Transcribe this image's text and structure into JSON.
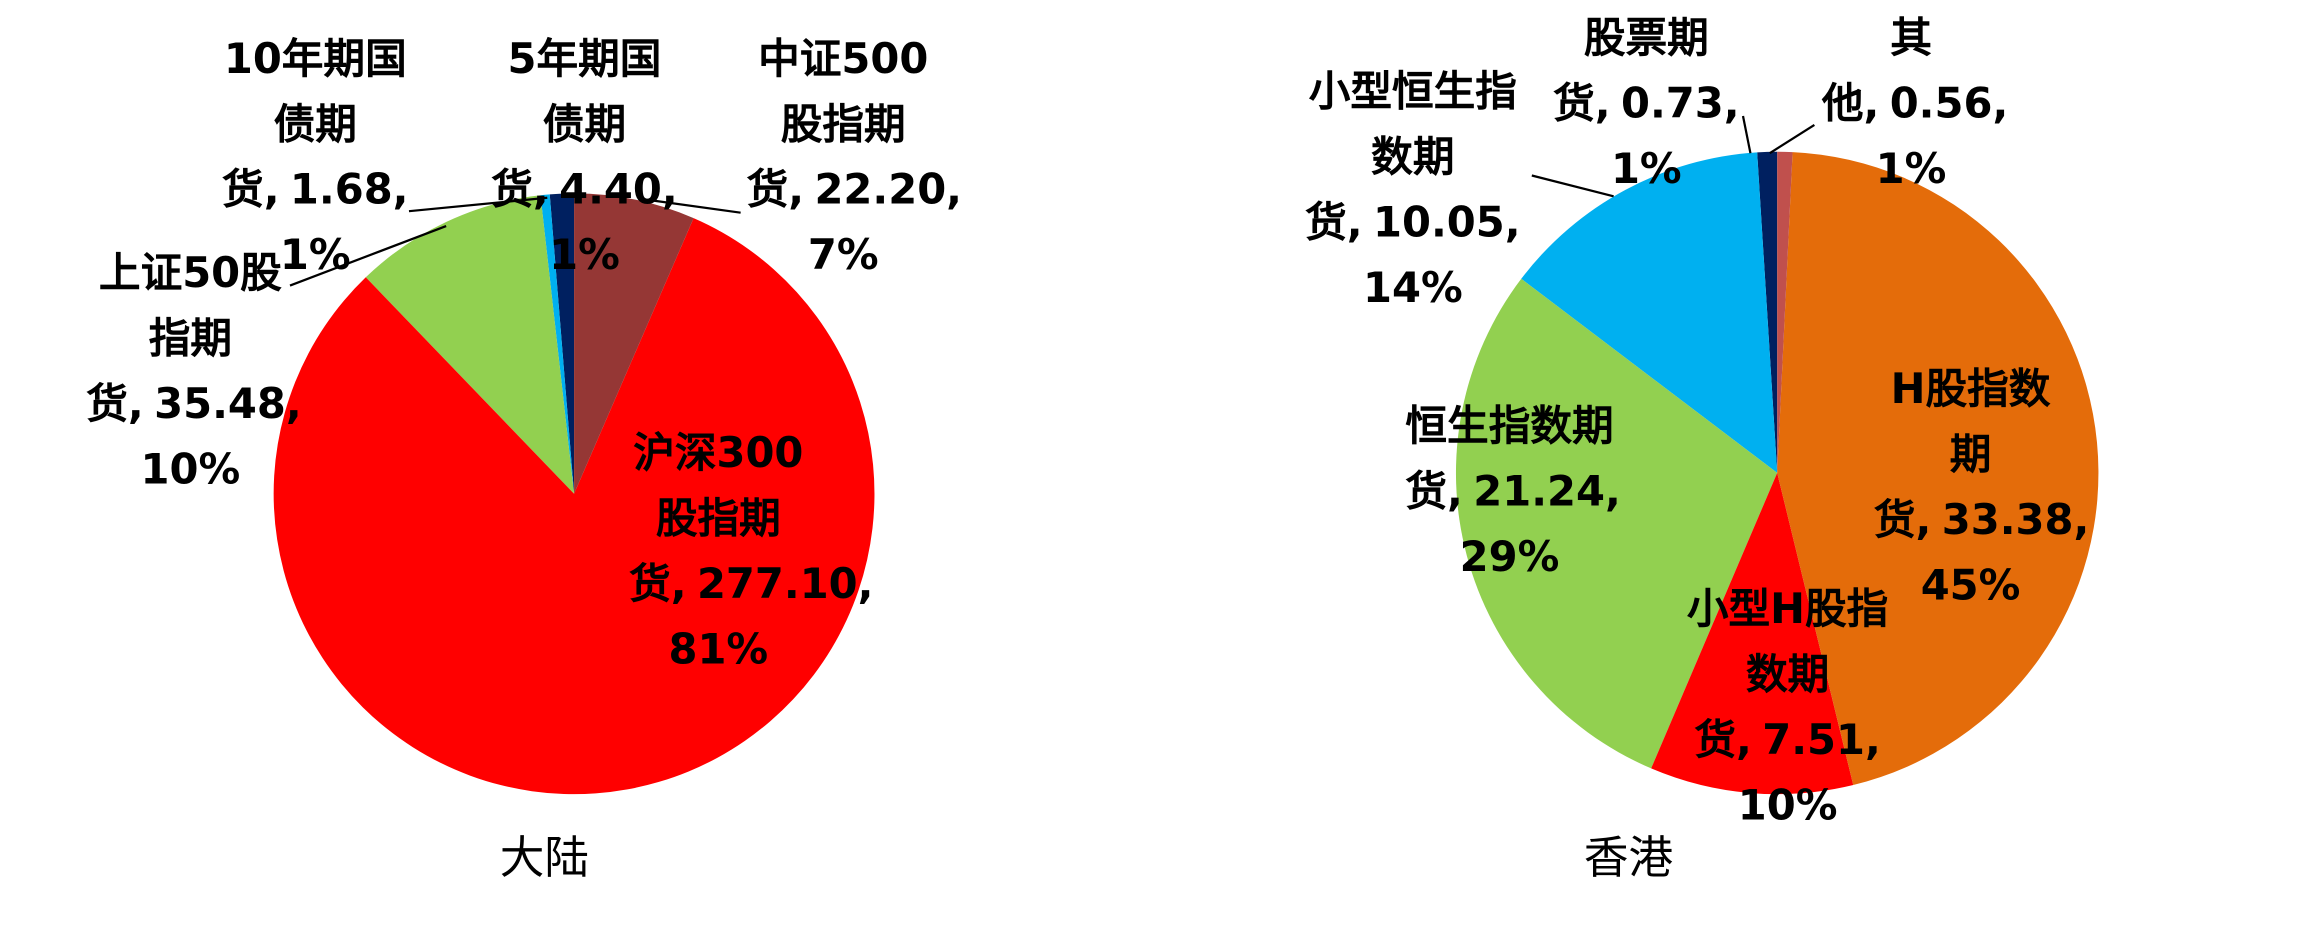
{
  "chart_data": [
    {
      "type": "pie",
      "title": "大陆",
      "categories": [
        "中证500股指期货,",
        "沪深300股指期货,",
        "上证50股指期货,",
        "10年期国债期货,",
        "5年期国债期货,"
      ],
      "values": [
        22.2,
        277.1,
        35.48,
        1.68,
        4.4
      ],
      "value_labels": [
        "22.20, 7%",
        "277.10, 81%",
        "35.48, 10%",
        "1.68, 1%",
        "4.40, 1%"
      ],
      "colors": [
        "#953735",
        "#ff0000",
        "#92d050",
        "#00b0f0",
        "#002060"
      ]
    },
    {
      "type": "pie",
      "title": "香港",
      "categories": [
        "其他,",
        "H股指数期货,",
        "小型H股指数期货,",
        "恒生指数期货,",
        "小型恒生指数期货,",
        "股票期货,"
      ],
      "values": [
        0.56,
        33.38,
        7.51,
        21.24,
        10.05,
        0.73
      ],
      "value_labels": [
        "0.56, 1%",
        "33.38, 45%",
        "7.51, 10%",
        "21.24, 29%",
        "10.05, 14%",
        "0.73, 1%"
      ],
      "colors": [
        "#c0504d",
        "#e46c0a",
        "#ff0000",
        "#92d050",
        "#00b0f0",
        "#002060"
      ]
    }
  ]
}
